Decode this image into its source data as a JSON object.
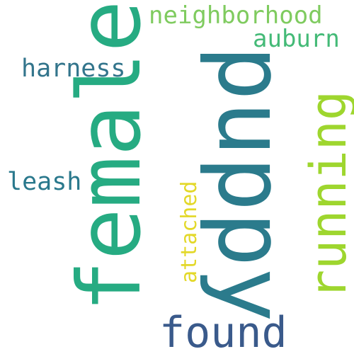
{
  "words": {
    "female": {
      "text": "female",
      "color": "#26ab82"
    },
    "puppy": {
      "text": "puppy",
      "color": "#2b7b8c"
    },
    "found": {
      "text": "found",
      "color": "#3a5a8b"
    },
    "running": {
      "text": "running",
      "color": "#9ed62e"
    },
    "neighborhood": {
      "text": "neighborhood",
      "color": "#7fcb5f"
    },
    "auburn": {
      "text": "auburn",
      "color": "#44ba77"
    },
    "harness": {
      "text": "harness",
      "color": "#33758c"
    },
    "leash": {
      "text": "leash",
      "color": "#29788c"
    },
    "attached": {
      "text": "attached",
      "color": "#e3d829"
    }
  },
  "background_color": "#ffffff"
}
